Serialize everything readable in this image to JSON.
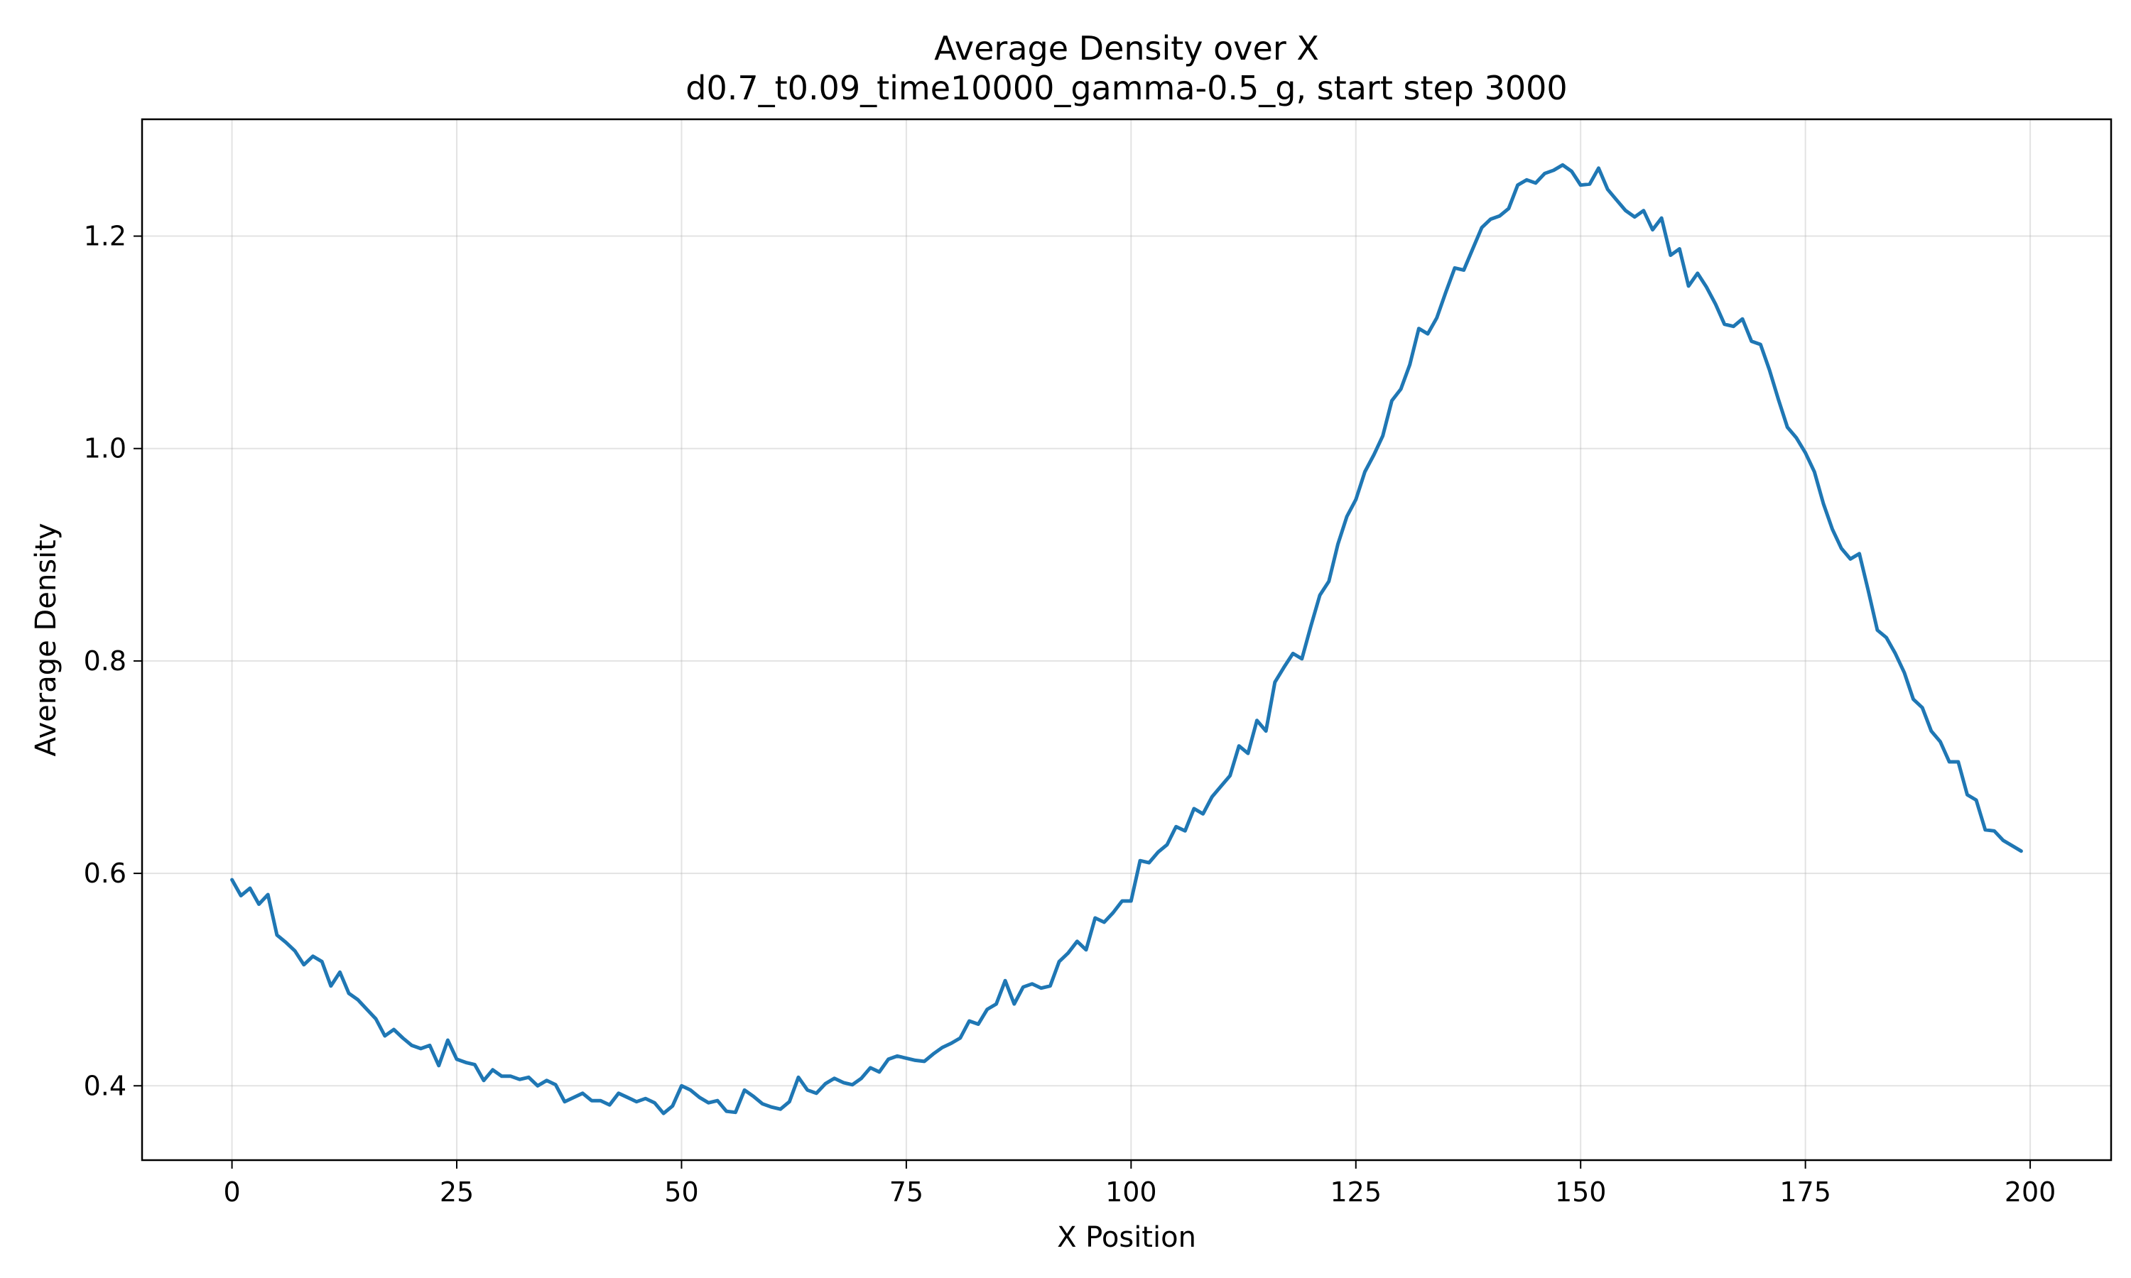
{
  "chart_data": {
    "type": "line",
    "title": "Average Density over X",
    "subtitle": "d0.7_t0.09_time10000_gamma-0.5_g, start step 3000",
    "xlabel": "X Position",
    "ylabel": "Average Density",
    "xlim": [
      -10,
      209
    ],
    "ylim": [
      0.33,
      1.31
    ],
    "xticks": [
      0,
      25,
      50,
      75,
      100,
      125,
      150,
      175,
      200
    ],
    "yticks": [
      0.4,
      0.6,
      0.8,
      1.0,
      1.2
    ],
    "xtick_labels": [
      "0",
      "25",
      "50",
      "75",
      "100",
      "125",
      "150",
      "175",
      "200"
    ],
    "ytick_labels": [
      "0.4",
      "0.6",
      "0.8",
      "1.0",
      "1.2"
    ],
    "grid": true,
    "line_color": "#1f77b4",
    "series": [
      {
        "x_start": 0,
        "x_step": 1,
        "values": [
          0.594,
          0.579,
          0.586,
          0.571,
          0.58,
          0.542,
          0.535,
          0.527,
          0.514,
          0.522,
          0.517,
          0.494,
          0.507,
          0.487,
          0.481,
          0.472,
          0.463,
          0.447,
          0.453,
          0.445,
          0.438,
          0.435,
          0.438,
          0.419,
          0.443,
          0.425,
          0.422,
          0.42,
          0.405,
          0.415,
          0.409,
          0.409,
          0.406,
          0.408,
          0.4,
          0.405,
          0.401,
          0.385,
          0.389,
          0.393,
          0.386,
          0.386,
          0.382,
          0.393,
          0.389,
          0.385,
          0.388,
          0.384,
          0.374,
          0.381,
          0.4,
          0.396,
          0.389,
          0.384,
          0.386,
          0.376,
          0.375,
          0.396,
          0.39,
          0.383,
          0.38,
          0.378,
          0.385,
          0.408,
          0.396,
          0.393,
          0.402,
          0.407,
          0.403,
          0.401,
          0.407,
          0.417,
          0.413,
          0.425,
          0.428,
          0.426,
          0.424,
          0.423,
          0.43,
          0.436,
          0.44,
          0.445,
          0.461,
          0.458,
          0.472,
          0.477,
          0.499,
          0.477,
          0.493,
          0.496,
          0.492,
          0.494,
          0.517,
          0.525,
          0.536,
          0.528,
          0.558,
          0.554,
          0.563,
          0.574,
          0.574,
          0.612,
          0.61,
          0.62,
          0.627,
          0.644,
          0.64,
          0.661,
          0.656,
          0.672,
          0.682,
          0.692,
          0.72,
          0.713,
          0.744,
          0.734,
          0.78,
          0.794,
          0.807,
          0.802,
          0.833,
          0.862,
          0.875,
          0.91,
          0.936,
          0.952,
          0.978,
          0.994,
          1.012,
          1.045,
          1.056,
          1.079,
          1.113,
          1.108,
          1.123,
          1.147,
          1.17,
          1.168,
          1.188,
          1.208,
          1.216,
          1.219,
          1.226,
          1.248,
          1.253,
          1.25,
          1.259,
          1.262,
          1.267,
          1.261,
          1.248,
          1.249,
          1.264,
          1.244,
          1.234,
          1.224,
          1.218,
          1.224,
          1.206,
          1.217,
          1.182,
          1.188,
          1.153,
          1.165,
          1.152,
          1.136,
          1.117,
          1.115,
          1.122,
          1.101,
          1.098,
          1.074,
          1.046,
          1.02,
          1.01,
          0.996,
          0.978,
          0.948,
          0.924,
          0.906,
          0.896,
          0.901,
          0.866,
          0.829,
          0.822,
          0.807,
          0.789,
          0.764,
          0.756,
          0.734,
          0.724,
          0.705,
          0.705,
          0.674,
          0.669,
          0.641,
          0.64,
          0.631,
          0.626,
          0.621
        ]
      }
    ]
  }
}
